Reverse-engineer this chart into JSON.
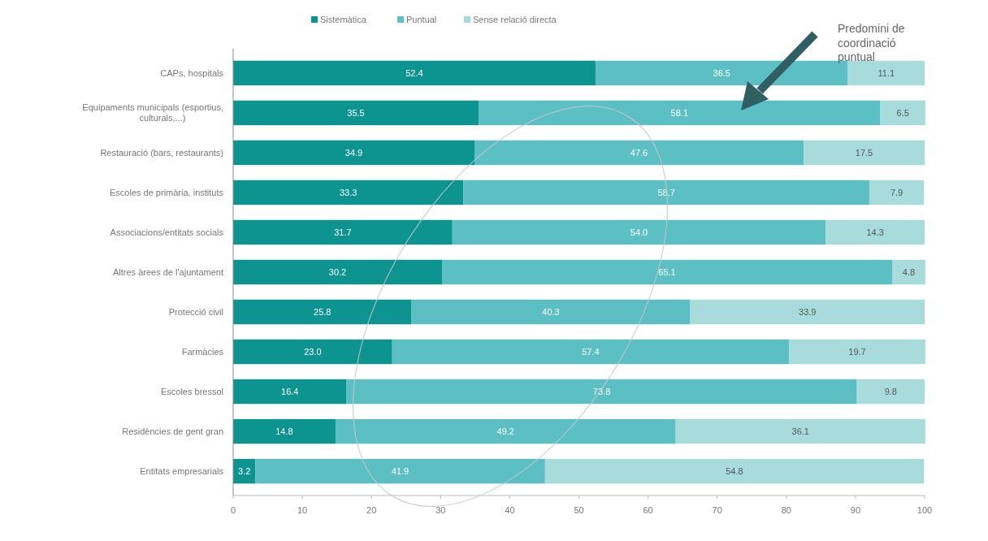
{
  "chart_data": {
    "type": "bar",
    "orientation": "horizontal",
    "stacked": true,
    "legend": "top",
    "categories": [
      "CAPs, hospitals",
      "Equipaments municipals (esportius, culturals,...)",
      "Restauració (bars, restaurants)",
      "Escoles de primària, instituts",
      "Associacions/entitats socials",
      "Altres àrees de l'ajuntament",
      "Protecció civil",
      "Farmàcies",
      "Escoles bressol",
      "Residències de gent gran",
      "Entitats empresarials"
    ],
    "series": [
      {
        "name": "Sistemàtica",
        "color": "#0e9490",
        "values": [
          52.4,
          35.5,
          34.9,
          33.3,
          31.7,
          30.2,
          25.8,
          23.0,
          16.4,
          14.8,
          3.2
        ],
        "value_labels": [
          "52.4",
          "35.5",
          "34.9",
          "33.3",
          "31.7",
          "30.2",
          "25.8",
          "23.0",
          "16.4",
          "14.8",
          "3.2"
        ]
      },
      {
        "name": "Puntual",
        "color": "#5bbfc4",
        "values": [
          36.5,
          58.1,
          47.6,
          58.7,
          54.0,
          65.1,
          40.3,
          57.4,
          73.8,
          49.2,
          41.9
        ],
        "value_labels": [
          "36.5",
          "58.1",
          "47.6",
          "58.7",
          "54.0",
          "65.1",
          "40.3",
          "57.4",
          "73.8",
          "49.2",
          "41.9"
        ]
      },
      {
        "name": "Sense relació directa",
        "color": "#a8dcdc",
        "values": [
          11.1,
          6.5,
          17.5,
          7.9,
          14.3,
          4.8,
          33.9,
          19.7,
          9.8,
          36.1,
          54.8
        ],
        "value_labels": [
          "11.1",
          "6.5",
          "17.5",
          "7.9",
          "14.3",
          "4.8",
          "33.9",
          "19.7",
          "9.8",
          "36.1",
          "54.8"
        ]
      }
    ],
    "xlim": [
      0,
      100
    ],
    "xticks": [
      0,
      10,
      20,
      30,
      40,
      50,
      60,
      70,
      80,
      90,
      100
    ],
    "grid": false,
    "annotations": [
      "Predomini de coordinació puntual"
    ]
  }
}
